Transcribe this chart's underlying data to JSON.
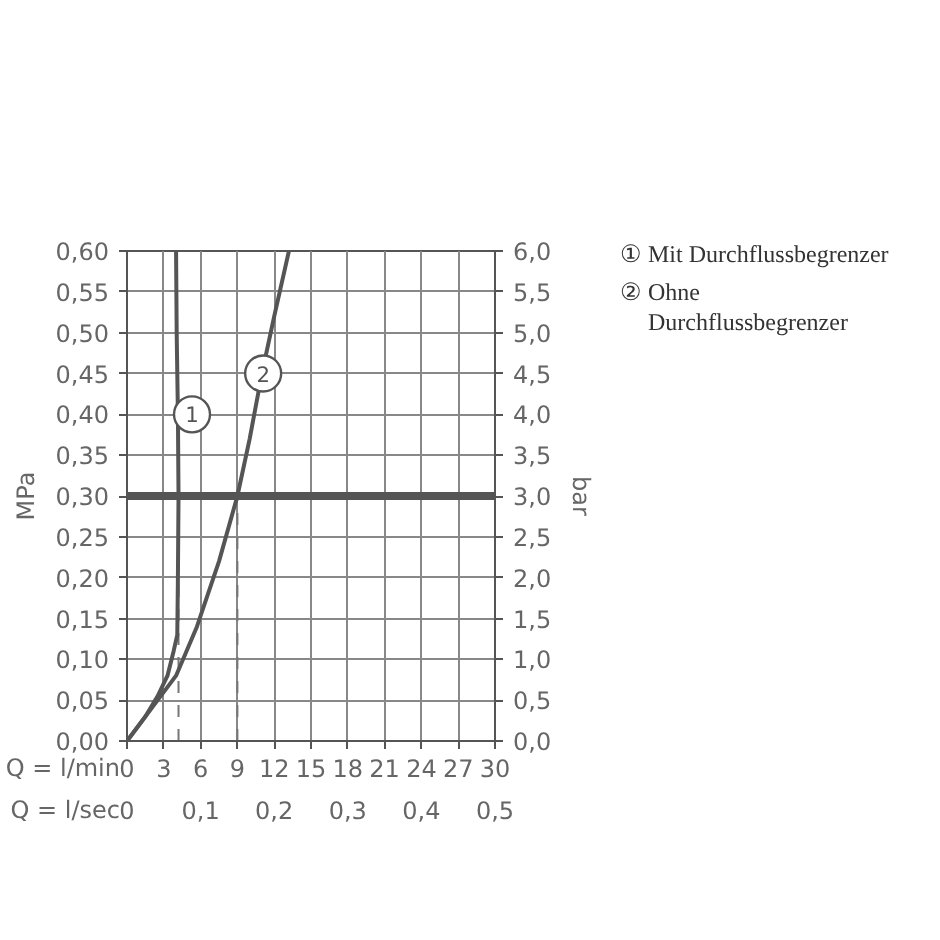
{
  "chart_data": {
    "type": "line",
    "xlabel": "Q = l/min",
    "x2label": "Q = l/sec",
    "ylabel": "MPa",
    "y2label": "bar",
    "xlim": [
      0,
      30
    ],
    "xticks": [
      0,
      3,
      6,
      9,
      12,
      15,
      18,
      21,
      24,
      27,
      30
    ],
    "x2lim": [
      0,
      0.5
    ],
    "x2ticks": [
      0,
      {
        "value": 0.1,
        "label": "0,1"
      },
      {
        "value": 0.2,
        "label": "0,2"
      },
      {
        "value": 0.3,
        "label": "0,3"
      },
      {
        "value": 0.4,
        "label": "0,4"
      },
      {
        "value": 0.5,
        "label": "0,5"
      }
    ],
    "ylim": [
      0,
      0.6
    ],
    "yticks": [
      {
        "value": 0,
        "label": "0,00"
      },
      {
        "value": 0.05,
        "label": "0,05"
      },
      {
        "value": 0.1,
        "label": "0,10"
      },
      {
        "value": 0.15,
        "label": "0,15"
      },
      {
        "value": 0.2,
        "label": "0,20"
      },
      {
        "value": 0.25,
        "label": "0,25"
      },
      {
        "value": 0.3,
        "label": "0,30"
      },
      {
        "value": 0.35,
        "label": "0,35"
      },
      {
        "value": 0.4,
        "label": "0,40"
      },
      {
        "value": 0.45,
        "label": "0,45"
      },
      {
        "value": 0.5,
        "label": "0,50"
      },
      {
        "value": 0.55,
        "label": "0,55"
      },
      {
        "value": 0.6,
        "label": "0,60"
      }
    ],
    "y2lim": [
      0,
      6
    ],
    "y2ticks": [
      {
        "value": 0,
        "label": "0,0"
      },
      {
        "value": 0.5,
        "label": "0,5"
      },
      {
        "value": 1,
        "label": "1,0"
      },
      {
        "value": 1.5,
        "label": "1,5"
      },
      {
        "value": 2,
        "label": "2,0"
      },
      {
        "value": 2.5,
        "label": "2,5"
      },
      {
        "value": 3,
        "label": "3,0"
      },
      {
        "value": 3.5,
        "label": "3,5"
      },
      {
        "value": 4,
        "label": "4,0"
      },
      {
        "value": 4.5,
        "label": "4,5"
      },
      {
        "value": 5,
        "label": "5,0"
      },
      {
        "value": 5.5,
        "label": "5,5"
      },
      {
        "value": 6,
        "label": "6,0"
      }
    ],
    "series": [
      {
        "name": "① Mit Durchflussbegrenzer",
        "color": "#555555",
        "x": [
          0,
          1.5,
          2.5,
          3.3,
          3.8,
          4.1,
          4.15,
          4.2,
          4.15,
          4.05,
          4.0
        ],
        "values": [
          0,
          0.03,
          0.055,
          0.08,
          0.11,
          0.13,
          0.2,
          0.3,
          0.4,
          0.5,
          0.6
        ]
      },
      {
        "name": "② Ohne Durchflussbegrenzer",
        "color": "#555555",
        "x": [
          0,
          2,
          4,
          5.7,
          7.5,
          9,
          10,
          11,
          12,
          13.2
        ],
        "values": [
          0,
          0.04,
          0.08,
          0.14,
          0.22,
          0.3,
          0.37,
          0.45,
          0.52,
          0.6
        ]
      }
    ],
    "annotations": [
      {
        "text": "1",
        "x": 5.3,
        "y": 0.4
      },
      {
        "text": "2",
        "x": 11.1,
        "y": 0.45
      }
    ],
    "ref_lines": [
      {
        "axis": "y",
        "value": 0.3,
        "color": "#555555"
      },
      {
        "axis": "x",
        "value": 4.2,
        "color": "#777777",
        "line_style": "dashed"
      },
      {
        "axis": "x",
        "value": 9,
        "color": "#777777",
        "line_style": "dashed"
      }
    ],
    "grid": true,
    "line_style": "solid",
    "marker": "none"
  }
}
